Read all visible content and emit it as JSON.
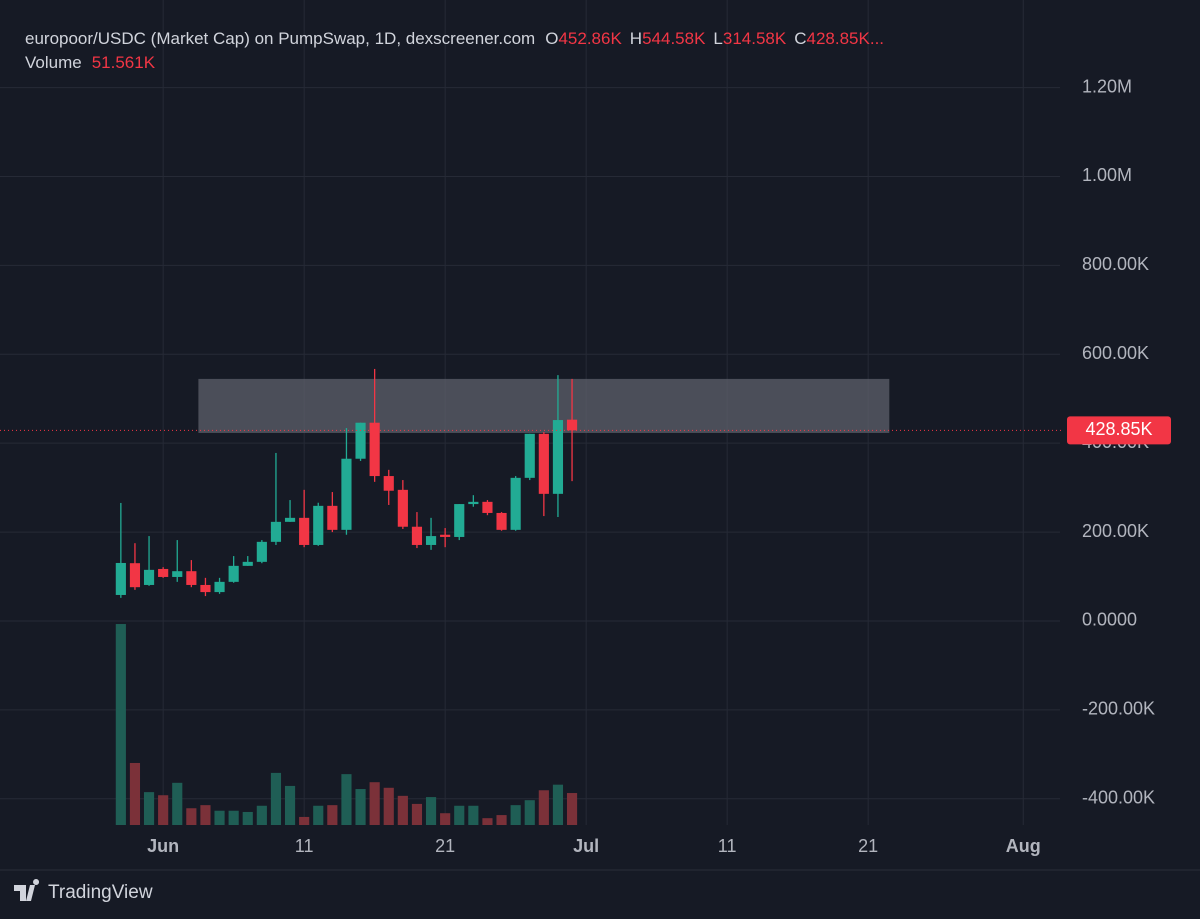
{
  "chart_data": {
    "type": "candlestick",
    "header": {
      "title": "europoor/USDC (Market Cap) on PumpSwap, 1D, dexscreener.com",
      "ohlc_keys": [
        "O",
        "H",
        "L",
        "C"
      ],
      "ohlc_labels": [
        "452.86K",
        "544.58K",
        "314.58K",
        "428.85K"
      ],
      "truncation": "...",
      "volume_name": "Volume",
      "volume_label": "51.561K"
    },
    "categories": [
      null,
      null,
      null,
      null,
      null,
      null,
      null,
      null,
      null,
      null,
      null,
      "Jun",
      null,
      null,
      null,
      null,
      null,
      null,
      null,
      null,
      null,
      "11",
      null,
      null,
      null,
      null,
      null,
      null,
      null,
      null,
      null,
      "21",
      null,
      null,
      null,
      null,
      null,
      null,
      null,
      null,
      null,
      "Jul",
      null,
      null,
      null,
      null,
      null,
      null,
      null,
      null,
      null,
      "11",
      null,
      null,
      null,
      null,
      null,
      null,
      null,
      null,
      null,
      "21",
      null,
      null,
      null,
      null,
      null,
      null,
      null,
      null,
      null,
      null,
      "Aug",
      null,
      null
    ],
    "open": [
      null,
      null,
      null,
      null,
      null,
      null,
      null,
      null,
      58500,
      130000,
      81000,
      117000,
      99000,
      112000,
      81000,
      65000,
      88000,
      124000,
      133000,
      178000,
      223000,
      232000,
      171000,
      259000,
      205000,
      365000,
      446000,
      326000,
      295000,
      212000,
      171000,
      194000,
      189000,
      263000,
      268000,
      243000,
      205000,
      322000,
      421000,
      286000,
      452860,
      null,
      null,
      null,
      null,
      null,
      null,
      null,
      null,
      null,
      null,
      null,
      null,
      null,
      null,
      null,
      null,
      null,
      null,
      null,
      null,
      null,
      null,
      null,
      null,
      null,
      null,
      null,
      null,
      null,
      null,
      null,
      null,
      null,
      null
    ],
    "high": [
      null,
      null,
      null,
      null,
      null,
      null,
      null,
      null,
      265500,
      175000,
      191000,
      121000,
      182000,
      137000,
      97000,
      97000,
      146000,
      146000,
      182000,
      378000,
      272000,
      295000,
      266000,
      290000,
      434000,
      446000,
      567000,
      340000,
      317000,
      245000,
      232000,
      209000,
      263000,
      283000,
      272000,
      245000,
      326000,
      421000,
      425000,
      553000,
      544580,
      null,
      null,
      null,
      null,
      null,
      null,
      null,
      null,
      null,
      null,
      null,
      null,
      null,
      null,
      null,
      null,
      null,
      null,
      null,
      null,
      null,
      null,
      null,
      null,
      null,
      null,
      null,
      null,
      null,
      null,
      null,
      null,
      null,
      null
    ],
    "low": [
      null,
      null,
      null,
      null,
      null,
      null,
      null,
      null,
      52000,
      70000,
      79000,
      97000,
      88000,
      76000,
      56000,
      61000,
      86000,
      124000,
      130000,
      171000,
      223000,
      166000,
      169000,
      200000,
      194000,
      360000,
      313000,
      261000,
      207000,
      164000,
      160000,
      166000,
      182000,
      257000,
      238000,
      203000,
      203000,
      317000,
      236000,
      234000,
      314580,
      null,
      null,
      null,
      null,
      null,
      null,
      null,
      null,
      null,
      null,
      null,
      null,
      null,
      null,
      null,
      null,
      null,
      null,
      null,
      null,
      null,
      null,
      null,
      null,
      null,
      null,
      null,
      null,
      null,
      null,
      null,
      null,
      null,
      null
    ],
    "close": [
      null,
      null,
      null,
      null,
      null,
      null,
      null,
      null,
      130500,
      76000,
      115000,
      99000,
      112000,
      81000,
      65000,
      88000,
      124000,
      133000,
      178000,
      223000,
      232000,
      171000,
      259000,
      205000,
      365000,
      446000,
      326000,
      293000,
      212000,
      171000,
      191000,
      189000,
      263000,
      268000,
      243000,
      205000,
      322000,
      421000,
      286000,
      452000,
      428850,
      null,
      null,
      null,
      null,
      null,
      null,
      null,
      null,
      null,
      null,
      null,
      null,
      null,
      null,
      null,
      null,
      null,
      null,
      null,
      null,
      null,
      null,
      null,
      null,
      null,
      null,
      null,
      null,
      null,
      null,
      null,
      null,
      null,
      null
    ],
    "volume": [
      null,
      null,
      null,
      null,
      null,
      null,
      null,
      null,
      324000,
      100000,
      53000,
      48000,
      68000,
      27000,
      32000,
      23000,
      23000,
      21000,
      31000,
      84000,
      63000,
      13000,
      31000,
      32000,
      82000,
      58000,
      69000,
      60000,
      47000,
      34000,
      45000,
      19000,
      31000,
      31000,
      11000,
      16000,
      32000,
      40000,
      56000,
      65000,
      51561,
      null,
      null,
      null,
      null,
      null,
      null,
      null,
      null,
      null,
      null,
      null,
      null,
      null,
      null,
      null,
      null,
      null,
      null,
      null,
      null,
      null,
      null,
      null,
      null,
      null,
      null,
      null,
      null,
      null,
      null,
      null,
      null,
      null,
      null
    ],
    "ylim": [
      -459000,
      1397000
    ],
    "yticks": [
      {
        "value": 1200000,
        "label": "1.20M"
      },
      {
        "value": 1000000,
        "label": "1.00M"
      },
      {
        "value": 800000,
        "label": "800.00K"
      },
      {
        "value": 600000,
        "label": "600.00K"
      },
      {
        "value": 400000,
        "label": "400.00K"
      },
      {
        "value": 200000,
        "label": "200.00K"
      },
      {
        "value": 0,
        "label": "0.0000"
      },
      {
        "value": -200000,
        "label": "-200.00K"
      },
      {
        "value": -400000,
        "label": "-400.00K"
      }
    ],
    "volume_lim": [
      0,
      1330000
    ],
    "zone": {
      "start_index": 14,
      "end_index": 63,
      "bottom": 423000,
      "top": 544580,
      "color": "#5d606b"
    },
    "grid": true,
    "up_color": "#22ab94",
    "down_color": "#f23645",
    "volume_up_color": "#1f5e55",
    "volume_down_color": "#7b3139",
    "brand": "TradingView"
  }
}
